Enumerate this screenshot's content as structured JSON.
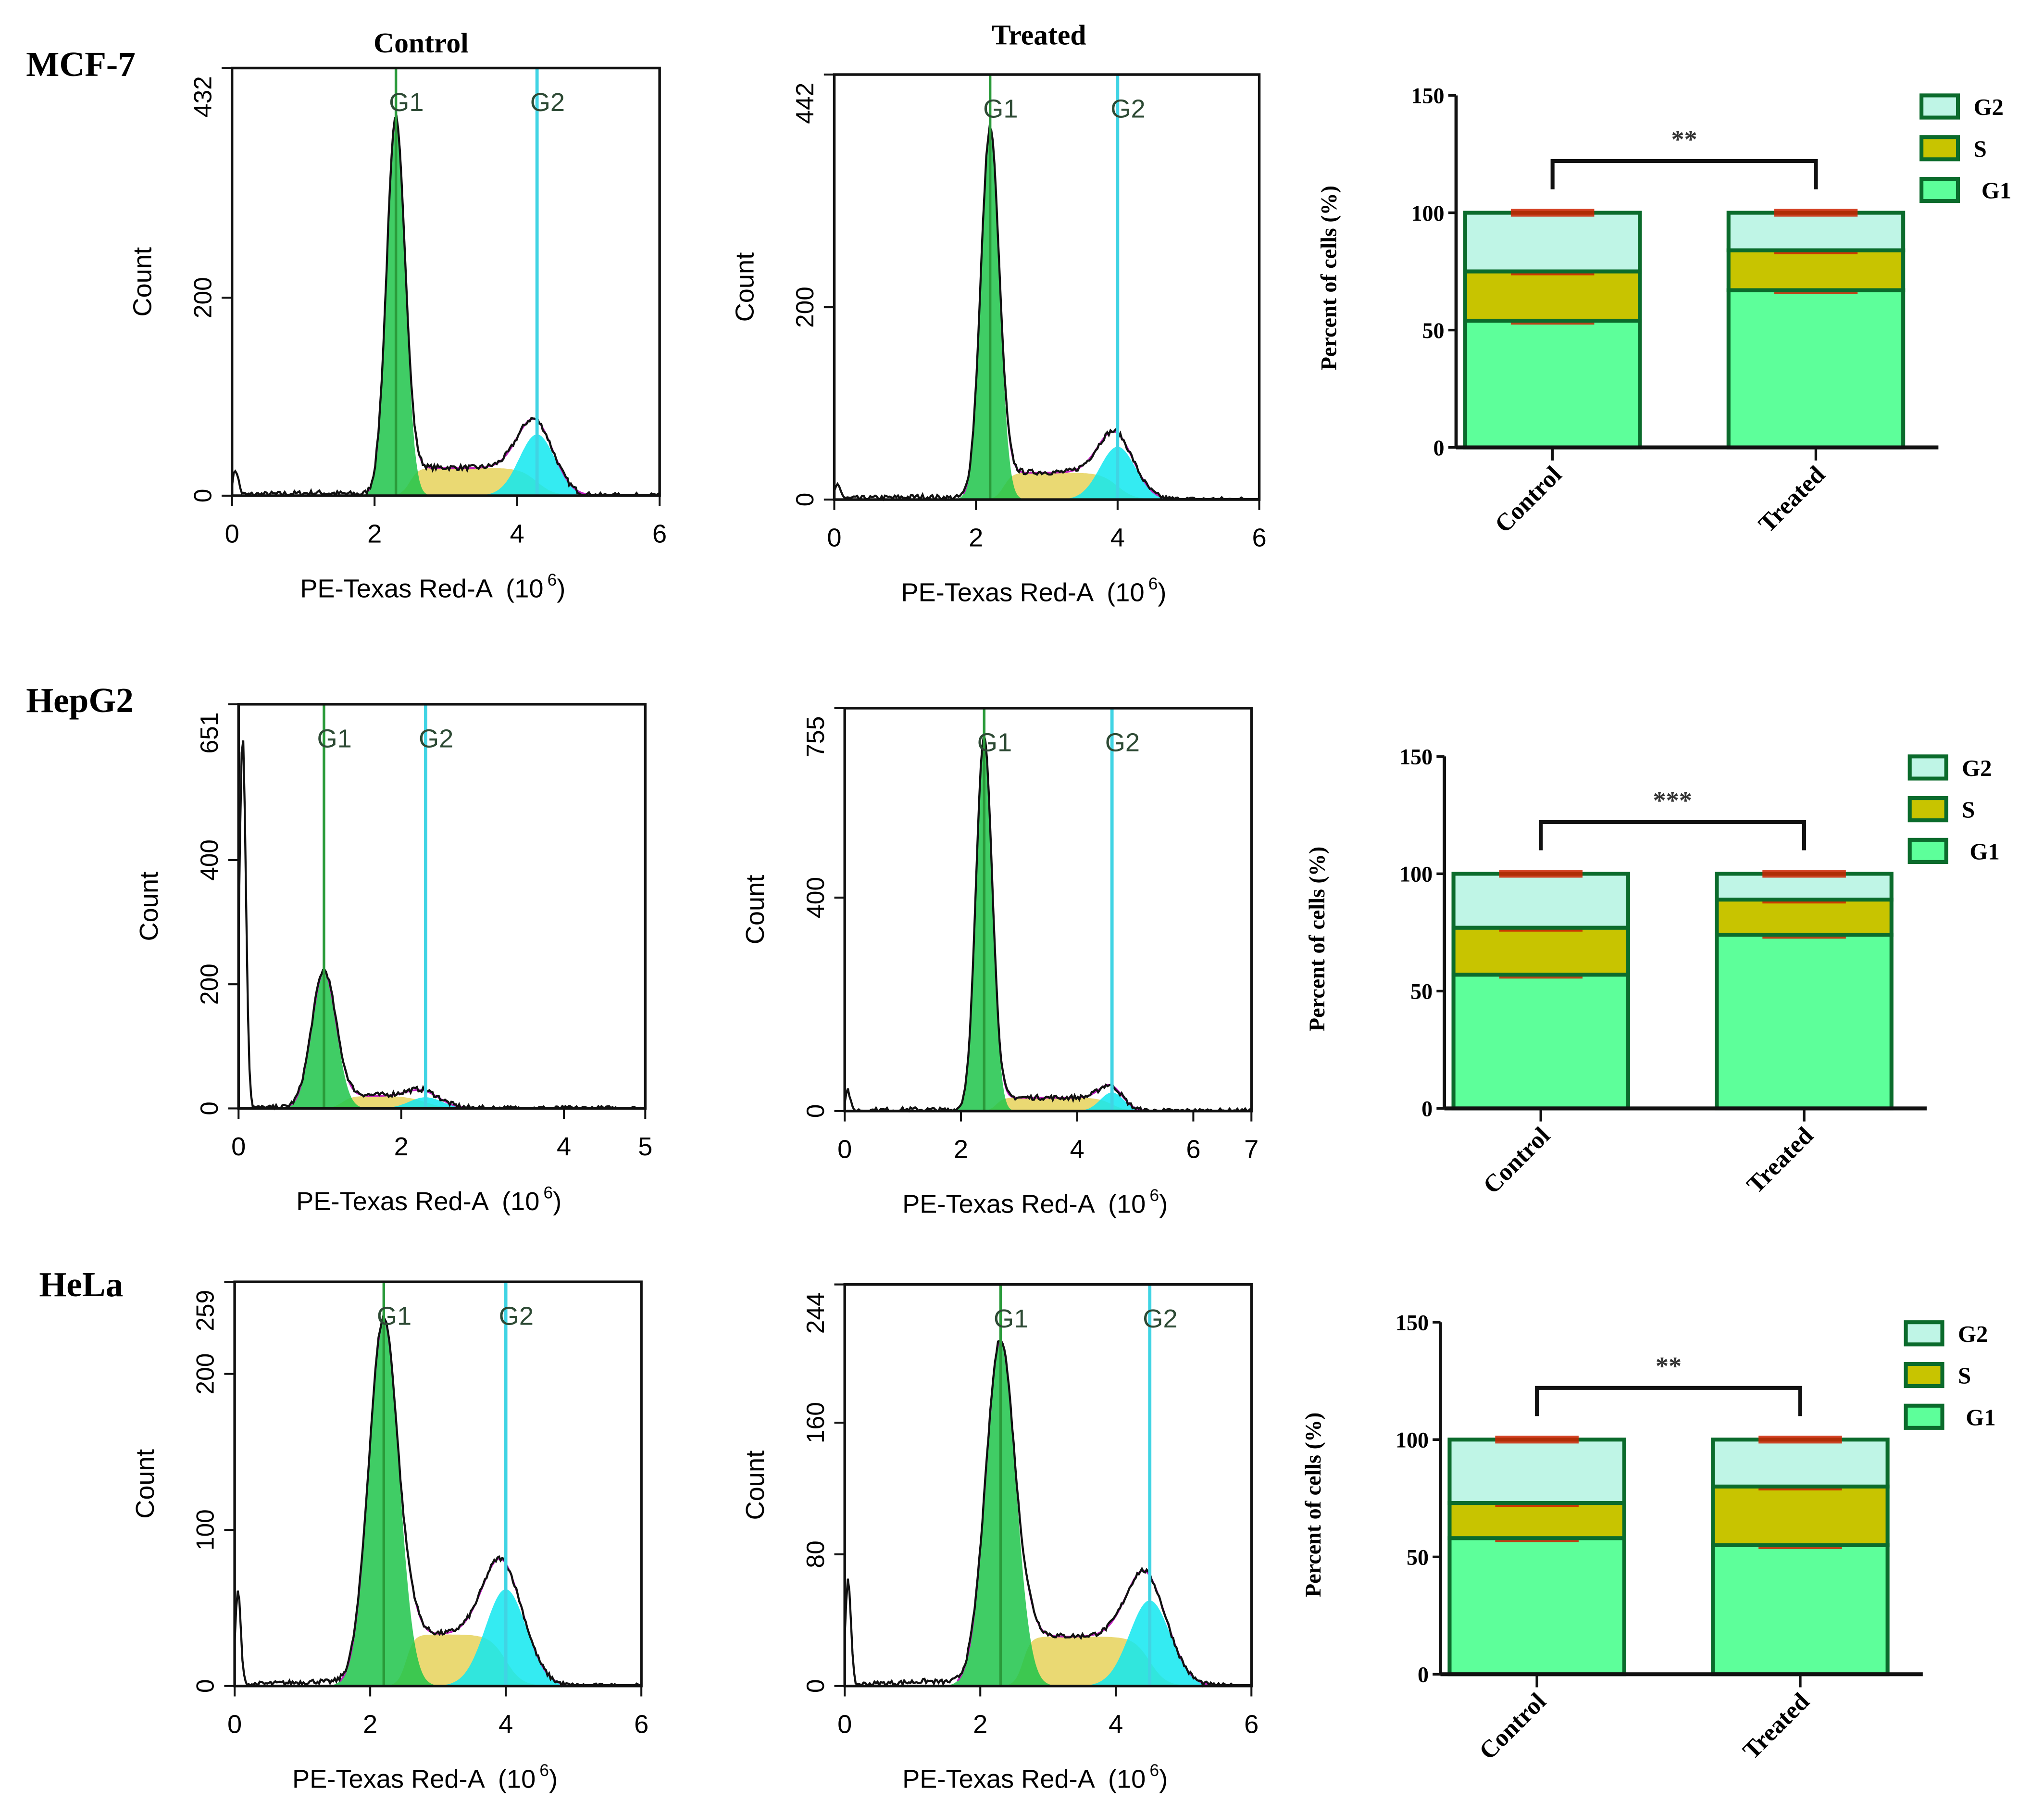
{
  "row_labels": [
    "MCF-7",
    "HepG2",
    "HeLa"
  ],
  "column_titles": {
    "control": "Control",
    "treated": "Treated"
  },
  "colors": {
    "G1": "#5dff9a",
    "S": "#c8c400",
    "G2": "#bff5e6",
    "bar_border": "#0b6b2c",
    "error": "#cc2200",
    "hist_g1": "#1fc44a",
    "hist_s": "#e6d25a",
    "hist_g2": "#10e8f0",
    "fit": "#c020c0"
  },
  "chart_data": [
    {
      "type": "histogram",
      "cell_line": "MCF-7",
      "condition": "Control",
      "xlabel": "PE-Texas Red-A",
      "xunit": "(10",
      "xexp": "6",
      "ylabel": "Count",
      "xlim": [
        0,
        6
      ],
      "xticks": [
        "0",
        "2",
        "4",
        "6"
      ],
      "xtick_values": [
        0,
        2,
        4,
        6
      ],
      "ylim": [
        0,
        432
      ],
      "yticks": [
        "0",
        "200",
        "432"
      ],
      "ytick_values": [
        0,
        200,
        432
      ],
      "peak_labels": [
        "G1",
        "G2"
      ],
      "g1_pos": 2.3,
      "g1_peak": 380,
      "g1_sd": 0.13,
      "g2_pos": 4.28,
      "g2_peak": 62,
      "g2_sd": 0.25,
      "s_level": 28,
      "debris_peak": 25
    },
    {
      "type": "histogram",
      "cell_line": "MCF-7",
      "condition": "Treated",
      "xlabel": "PE-Texas Red-A",
      "xunit": "(10",
      "xexp": "6",
      "ylabel": "Count",
      "xlim": [
        0,
        6
      ],
      "xticks": [
        "0",
        "2",
        "4",
        "6"
      ],
      "xtick_values": [
        0,
        2,
        4,
        6
      ],
      "ylim": [
        0,
        442
      ],
      "yticks": [
        "0",
        "200",
        "442"
      ],
      "ytick_values": [
        0,
        200,
        442
      ],
      "peak_labels": [
        "G1",
        "G2"
      ],
      "g1_pos": 2.2,
      "g1_peak": 385,
      "g1_sd": 0.13,
      "g2_pos": 4.0,
      "g2_peak": 55,
      "g2_sd": 0.25,
      "s_level": 28,
      "debris_peak": 15
    },
    {
      "type": "histogram",
      "cell_line": "HepG2",
      "condition": "Control",
      "xlabel": "PE-Texas Red-A",
      "xunit": "(10",
      "xexp": "6",
      "ylabel": "Count",
      "xlim": [
        0,
        5
      ],
      "xticks": [
        "0",
        "2",
        "4",
        "5"
      ],
      "xtick_values": [
        0,
        2,
        4,
        5
      ],
      "ylim": [
        0,
        651
      ],
      "yticks": [
        "0",
        "200",
        "400",
        "651"
      ],
      "ytick_values": [
        0,
        200,
        400,
        651
      ],
      "peak_labels": [
        "G1",
        "G2"
      ],
      "g1_pos": 1.05,
      "g1_peak": 220,
      "g1_sd": 0.15,
      "g2_pos": 2.3,
      "g2_peak": 18,
      "g2_sd": 0.2,
      "s_level": 20,
      "debris_peak": 600
    },
    {
      "type": "histogram",
      "cell_line": "HepG2",
      "condition": "Treated",
      "xlabel": "PE-Texas Red-A",
      "xunit": "(10",
      "xexp": "6",
      "ylabel": "Count",
      "xlim": [
        0,
        7
      ],
      "xticks": [
        "0",
        "2",
        "4",
        "6",
        "7"
      ],
      "xtick_values": [
        0,
        2,
        4,
        6,
        7
      ],
      "ylim": [
        0,
        755
      ],
      "yticks": [
        "0",
        "400",
        "755"
      ],
      "ytick_values": [
        0,
        400,
        755
      ],
      "peak_labels": [
        "G1",
        "G2"
      ],
      "g1_pos": 2.4,
      "g1_peak": 700,
      "g1_sd": 0.14,
      "g2_pos": 4.6,
      "g2_peak": 35,
      "g2_sd": 0.2,
      "s_level": 25,
      "debris_peak": 40
    },
    {
      "type": "histogram",
      "cell_line": "HeLa",
      "condition": "Control",
      "xlabel": "PE-Texas Red-A",
      "xunit": "(10",
      "xexp": "6",
      "ylabel": "Count",
      "xlim": [
        0,
        6
      ],
      "xticks": [
        "0",
        "2",
        "4",
        "6"
      ],
      "xtick_values": [
        0,
        2,
        4,
        6
      ],
      "ylim": [
        0,
        259
      ],
      "yticks": [
        "0",
        "100",
        "200",
        "259"
      ],
      "ytick_values": [
        0,
        100,
        200,
        259
      ],
      "peak_labels": [
        "G1",
        "G2"
      ],
      "g1_pos": 2.2,
      "g1_peak": 235,
      "g1_sd": 0.22,
      "g2_pos": 4.0,
      "g2_peak": 62,
      "g2_sd": 0.3,
      "s_level": 33,
      "debris_peak": 60
    },
    {
      "type": "histogram",
      "cell_line": "HeLa",
      "condition": "Treated",
      "xlabel": "PE-Texas Red-A",
      "xunit": "(10",
      "xexp": "6",
      "ylabel": "Count",
      "xlim": [
        0,
        6
      ],
      "xticks": [
        "0",
        "2",
        "4",
        "6"
      ],
      "xtick_values": [
        0,
        2,
        4,
        6
      ],
      "ylim": [
        0,
        244
      ],
      "yticks": [
        "0",
        "80",
        "160",
        "244"
      ],
      "ytick_values": [
        0,
        80,
        160,
        244
      ],
      "peak_labels": [
        "G1",
        "G2"
      ],
      "g1_pos": 2.3,
      "g1_peak": 210,
      "g1_sd": 0.22,
      "g2_pos": 4.5,
      "g2_peak": 52,
      "g2_sd": 0.3,
      "s_level": 30,
      "debris_peak": 65
    },
    {
      "type": "bar",
      "stacked": true,
      "cell_line": "MCF-7",
      "categories": [
        "Control",
        "Treated"
      ],
      "ylabel": "Percent of cells (%)",
      "ylim": [
        0,
        150
      ],
      "yticks": [
        "0",
        "50",
        "100",
        "150"
      ],
      "ytick_values": [
        0,
        50,
        100,
        150
      ],
      "legend": [
        "G2",
        "S",
        "G1"
      ],
      "legend_position": "top-right",
      "significance": "**",
      "series": [
        {
          "name": "G1",
          "values": [
            54,
            67
          ]
        },
        {
          "name": "S",
          "values": [
            21,
            17
          ]
        },
        {
          "name": "G2",
          "values": [
            25,
            16
          ]
        }
      ]
    },
    {
      "type": "bar",
      "stacked": true,
      "cell_line": "HepG2",
      "categories": [
        "Control",
        "Treated"
      ],
      "ylabel": "Percent of cells (%)",
      "ylim": [
        0,
        150
      ],
      "yticks": [
        "0",
        "50",
        "100",
        "150"
      ],
      "ytick_values": [
        0,
        50,
        100,
        150
      ],
      "legend": [
        "G2",
        "S",
        "G1"
      ],
      "legend_position": "top-right",
      "significance": "***",
      "series": [
        {
          "name": "G1",
          "values": [
            57,
            74
          ]
        },
        {
          "name": "S",
          "values": [
            20,
            15
          ]
        },
        {
          "name": "G2",
          "values": [
            23,
            11
          ]
        }
      ]
    },
    {
      "type": "bar",
      "stacked": true,
      "cell_line": "HeLa",
      "categories": [
        "Control",
        "Treated"
      ],
      "ylabel": "Percent of cells (%)",
      "ylim": [
        0,
        150
      ],
      "yticks": [
        "0",
        "50",
        "100",
        "150"
      ],
      "ytick_values": [
        0,
        50,
        100,
        150
      ],
      "legend": [
        "G2",
        "S",
        "G1"
      ],
      "legend_position": "top-right",
      "significance": "**",
      "series": [
        {
          "name": "G1",
          "values": [
            58,
            55
          ]
        },
        {
          "name": "S",
          "values": [
            15,
            25
          ]
        },
        {
          "name": "G2",
          "values": [
            27,
            20
          ]
        }
      ]
    }
  ]
}
